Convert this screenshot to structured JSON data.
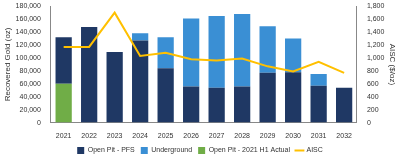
{
  "chart_data": {
    "type": "bar",
    "stacked": true,
    "grid": false,
    "legend": "bottom",
    "categories": [
      "2021",
      "2022",
      "2023",
      "2024",
      "2025",
      "2026",
      "2027",
      "2028",
      "2029",
      "2030",
      "2031",
      "2032"
    ],
    "series": [
      {
        "name": "Open Pit - PFS",
        "color": "#1f3864",
        "values": [
          72000,
          148000,
          109000,
          127000,
          84000,
          56000,
          54000,
          56000,
          77000,
          78000,
          57000,
          54000
        ]
      },
      {
        "name": "Underground",
        "color": "#3a8fd4",
        "values": [
          null,
          null,
          null,
          11000,
          48000,
          105000,
          111000,
          112000,
          72000,
          52000,
          18000,
          null
        ]
      },
      {
        "name": "Open Pit - 2021 H1 Actual",
        "color": "#70ad47",
        "values": [
          60000,
          null,
          null,
          null,
          null,
          null,
          null,
          null,
          null,
          null,
          null,
          null
        ]
      },
      {
        "name": "AISC",
        "type": "line",
        "axis": "y2",
        "color": "#ffc000",
        "values": [
          1170,
          1170,
          1700,
          1030,
          1080,
          980,
          960,
          990,
          870,
          790,
          940,
          770
        ]
      }
    ],
    "ylabel": "Recovered Gold (oz)",
    "y2label": "AISC ($/oz)",
    "ylim": [
      0,
      180000
    ],
    "yticks": [
      0,
      {
        "value": 20000,
        "label": "20,000"
      },
      {
        "value": 40000,
        "label": "40,000"
      },
      {
        "value": 60000,
        "label": "60,000"
      },
      {
        "value": 80000,
        "label": "80,000"
      },
      {
        "value": 100000,
        "label": "100,000"
      },
      {
        "value": 120000,
        "label": "120,000"
      },
      {
        "value": 140000,
        "label": "140,000"
      },
      {
        "value": 160000,
        "label": "160,000"
      },
      {
        "value": 180000,
        "label": "180,000"
      }
    ],
    "y2lim": [
      0,
      1800
    ],
    "y2ticks": [
      0,
      200,
      400,
      600,
      800,
      {
        "value": 1000,
        "label": "1,000"
      },
      {
        "value": 1200,
        "label": "1,200"
      },
      {
        "value": 1400,
        "label": "1,400"
      },
      {
        "value": 1600,
        "label": "1,600"
      },
      {
        "value": 1800,
        "label": "1,800"
      }
    ]
  }
}
